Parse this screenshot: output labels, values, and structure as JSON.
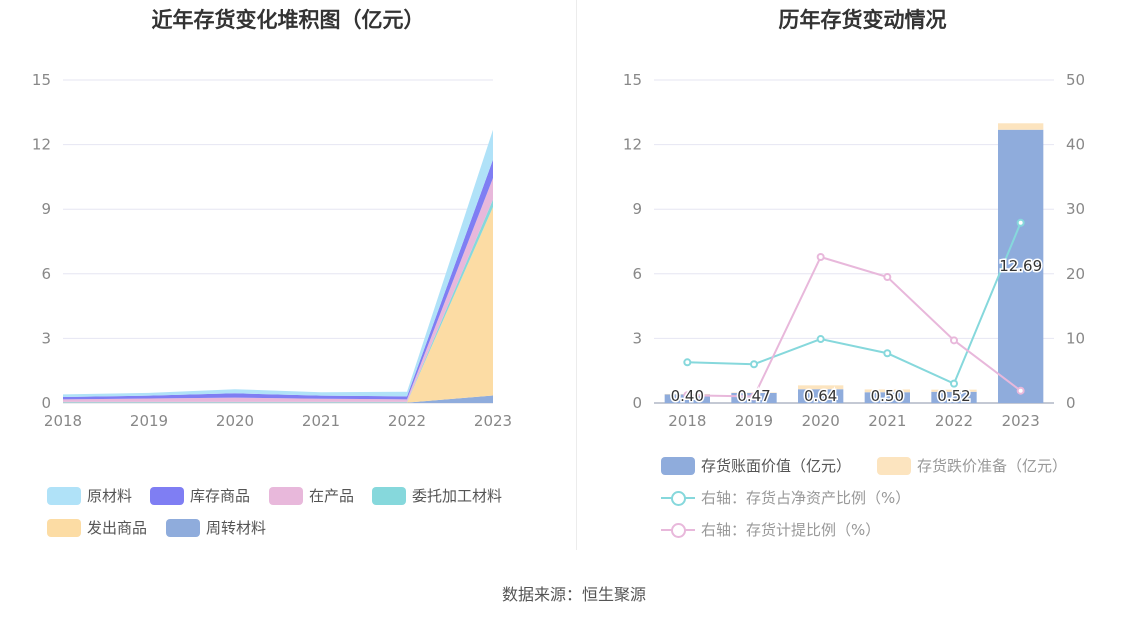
{
  "source_text": "数据来源：恒生聚源",
  "chart_data": [
    {
      "type": "area",
      "title": "近年存货变化堆积图（亿元）",
      "categories": [
        "2018",
        "2019",
        "2020",
        "2021",
        "2022",
        "2023"
      ],
      "ylim": [
        0,
        15
      ],
      "yticks": [
        0,
        3,
        6,
        9,
        12,
        15
      ],
      "grid": true,
      "stacked": true,
      "legend_position": "bottom",
      "series": [
        {
          "name": "周转材料",
          "color": "#8facdc",
          "values": [
            0.02,
            0.02,
            0.02,
            0.02,
            0.02,
            0.35
          ]
        },
        {
          "name": "发出商品",
          "color": "#fcdca4",
          "values": [
            0.01,
            0.01,
            0.01,
            0.01,
            0.01,
            8.75
          ]
        },
        {
          "name": "委托加工材料",
          "color": "#86d8dc",
          "values": [
            0.02,
            0.02,
            0.02,
            0.02,
            0.02,
            0.35
          ]
        },
        {
          "name": "在产品",
          "color": "#e8b8db",
          "values": [
            0.12,
            0.16,
            0.2,
            0.15,
            0.12,
            1.0
          ]
        },
        {
          "name": "库存商品",
          "color": "#7f7ef3",
          "values": [
            0.11,
            0.13,
            0.2,
            0.14,
            0.14,
            0.85
          ]
        },
        {
          "name": "原材料",
          "color": "#b0e2f8",
          "values": [
            0.12,
            0.13,
            0.19,
            0.16,
            0.21,
            1.39
          ]
        }
      ],
      "legend": [
        "原材料",
        "库存商品",
        "在产品",
        "委托加工材料",
        "发出商品",
        "周转材料"
      ]
    },
    {
      "type": "bar+line",
      "title": "历年存货变动情况",
      "categories": [
        "2018",
        "2019",
        "2020",
        "2021",
        "2022",
        "2023"
      ],
      "ylim_left": [
        0,
        15
      ],
      "yticks_left": [
        0,
        3,
        6,
        9,
        12,
        15
      ],
      "ylim_right": [
        0,
        50
      ],
      "yticks_right": [
        0,
        10,
        20,
        30,
        40,
        50
      ],
      "legend_position": "bottom",
      "bars": [
        {
          "name": "存货账面价值（亿元）",
          "color": "#8facdc",
          "values": [
            0.4,
            0.47,
            0.64,
            0.5,
            0.52,
            12.69
          ],
          "labels": [
            "0.40",
            "0.47",
            "0.64",
            "0.50",
            "0.52",
            "12.69"
          ]
        },
        {
          "name": "存货跌价准备（亿元）",
          "color": "#fce4bf",
          "values": [
            0.02,
            0.02,
            0.18,
            0.13,
            0.1,
            0.3
          ]
        }
      ],
      "lines": [
        {
          "name": "右轴：存货占净资产比例（%）",
          "color": "#86d8dc",
          "axis": "right",
          "values": [
            6.3,
            6.0,
            9.9,
            7.7,
            3.0,
            27.9
          ]
        },
        {
          "name": "右轴：存货计提比例（%）",
          "color": "#e8b8db",
          "axis": "right",
          "values": [
            1.2,
            1.0,
            22.6,
            19.5,
            9.7,
            1.9
          ]
        }
      ]
    }
  ]
}
